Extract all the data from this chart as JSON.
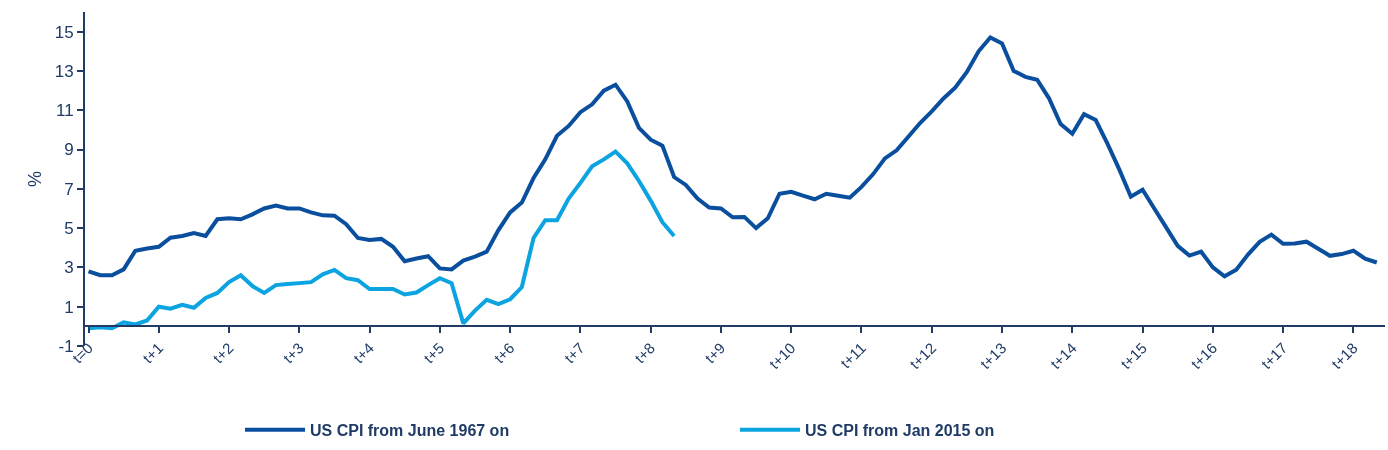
{
  "chart_data": {
    "type": "line",
    "ylabel": "%",
    "categories": [
      "t=0",
      null,
      null,
      null,
      null,
      null,
      "t+1",
      null,
      null,
      null,
      null,
      null,
      "t+2",
      null,
      null,
      null,
      null,
      null,
      "t+3",
      null,
      null,
      null,
      null,
      null,
      "t+4",
      null,
      null,
      null,
      null,
      null,
      "t+5",
      null,
      null,
      null,
      null,
      null,
      "t+6",
      null,
      null,
      null,
      null,
      null,
      "t+7",
      null,
      null,
      null,
      null,
      null,
      "t+8",
      null,
      null,
      null,
      null,
      null,
      "t+9",
      null,
      null,
      null,
      null,
      null,
      "t+10",
      null,
      null,
      null,
      null,
      null,
      "t+11",
      null,
      null,
      null,
      null,
      null,
      "t+12",
      null,
      null,
      null,
      null,
      null,
      "t+13",
      null,
      null,
      null,
      null,
      null,
      "t+14",
      null,
      null,
      null,
      null,
      null,
      "t+15",
      null,
      null,
      null,
      null,
      null,
      "t+16",
      null,
      null,
      null,
      null,
      null,
      "t+17",
      null,
      null,
      null,
      null,
      null,
      "t+18",
      null,
      null
    ],
    "ylim": [
      -1,
      16
    ],
    "yticks": [
      -1,
      1,
      3,
      5,
      7,
      9,
      11,
      13,
      15
    ],
    "legend": "bottom",
    "marker": "none",
    "line_style": "solid",
    "series": [
      {
        "name": "US CPI from June 1967 on",
        "color": "#0a4f9e",
        "values": [
          2.8,
          2.6,
          2.6,
          2.9,
          3.85,
          3.96,
          4.05,
          4.51,
          4.6,
          4.75,
          4.6,
          5.45,
          5.5,
          5.45,
          5.7,
          6.0,
          6.15,
          6.0,
          6.0,
          5.8,
          5.65,
          5.63,
          5.2,
          4.5,
          4.4,
          4.45,
          4.05,
          3.31,
          3.45,
          3.57,
          2.95,
          2.9,
          3.35,
          3.55,
          3.8,
          4.9,
          5.8,
          6.3,
          7.55,
          8.5,
          9.7,
          10.2,
          10.9,
          11.3,
          12.0,
          12.3,
          11.45,
          10.1,
          9.5,
          9.2,
          7.6,
          7.2,
          6.5,
          6.05,
          6.0,
          5.55,
          5.57,
          5.0,
          5.5,
          6.75,
          6.85,
          6.65,
          6.47,
          6.75,
          6.65,
          6.55,
          7.1,
          7.75,
          8.55,
          8.96,
          9.65,
          10.35,
          10.94,
          11.6,
          12.15,
          12.95,
          14.0,
          14.7,
          14.4,
          13.0,
          12.7,
          12.55,
          11.62,
          10.3,
          9.8,
          10.8,
          10.5,
          9.3,
          8.0,
          6.6,
          6.95,
          6.0,
          5.05,
          4.1,
          3.6,
          3.8,
          3.0,
          2.55,
          2.88,
          3.65,
          4.3,
          4.67,
          4.2,
          4.22,
          4.31,
          3.95,
          3.59,
          3.68,
          3.85,
          3.45,
          3.25
        ]
      },
      {
        "name": "US CPI from Jan 2015 on",
        "color": "#0ba4e0",
        "values": [
          -0.1,
          -0.05,
          -0.1,
          0.2,
          0.1,
          0.3,
          1.0,
          0.9,
          1.1,
          0.95,
          1.45,
          1.7,
          2.25,
          2.6,
          2.05,
          1.7,
          2.1,
          2.15,
          2.2,
          2.25,
          2.65,
          2.87,
          2.45,
          2.35,
          1.9,
          1.9,
          1.9,
          1.62,
          1.72,
          2.1,
          2.45,
          2.2,
          0.15,
          0.8,
          1.35,
          1.13,
          1.38,
          2.0,
          4.5,
          5.4,
          5.4,
          6.5,
          7.3,
          8.15,
          8.5,
          8.9,
          8.3,
          7.4,
          6.4,
          5.3,
          4.6,
          null,
          null,
          null,
          null,
          null,
          null,
          null,
          null,
          null,
          null,
          null,
          null,
          null,
          null,
          null,
          null,
          null,
          null,
          null,
          null,
          null,
          null,
          null,
          null,
          null,
          null,
          null,
          null,
          null,
          null,
          null,
          null,
          null,
          null,
          null,
          null,
          null,
          null,
          null,
          null,
          null,
          null,
          null,
          null,
          null,
          null,
          null,
          null,
          null,
          null,
          null,
          null,
          null,
          null,
          null,
          null,
          null,
          null,
          null,
          null
        ]
      }
    ]
  }
}
